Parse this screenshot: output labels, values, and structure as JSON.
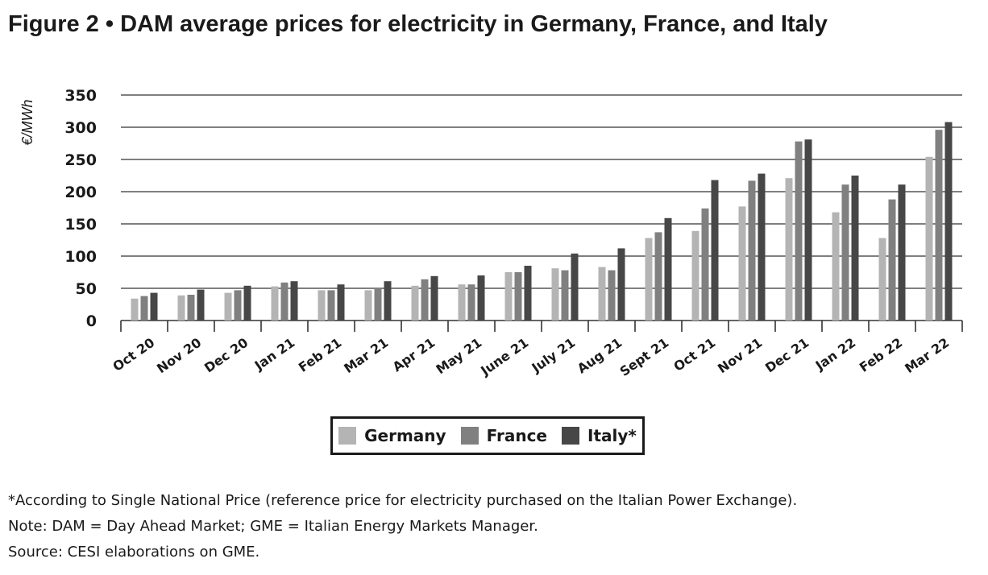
{
  "title": "Figure 2 • DAM average prices for electricity in Germany, France, and Italy",
  "chart_data": {
    "type": "bar",
    "ylabel": "€/MWh",
    "xlabel": "",
    "ylim": [
      0,
      350
    ],
    "yticks": [
      0,
      50,
      100,
      150,
      200,
      250,
      300,
      350
    ],
    "grid": true,
    "legend_position": "bottom-center",
    "categories": [
      "Oct 20",
      "Nov 20",
      "Dec 20",
      "Jan 21",
      "Feb 21",
      "Mar 21",
      "Apr 21",
      "May 21",
      "June 21",
      "July 21",
      "Aug 21",
      "Sept 21",
      "Oct 21",
      "Nov 21",
      "Dec 21",
      "Jan 22",
      "Feb 22",
      "Mar 22"
    ],
    "series": [
      {
        "name": "Germany",
        "color": "#b4b4b4",
        "values": [
          34,
          39,
          43,
          53,
          47,
          47,
          54,
          56,
          75,
          81,
          83,
          128,
          139,
          177,
          221,
          168,
          128,
          254
        ]
      },
      {
        "name": "France",
        "color": "#808080",
        "values": [
          38,
          40,
          47,
          59,
          47,
          51,
          64,
          56,
          75,
          78,
          78,
          137,
          174,
          217,
          278,
          211,
          188,
          296
        ]
      },
      {
        "name": "Italy*",
        "color": "#474747",
        "values": [
          43,
          48,
          54,
          61,
          56,
          61,
          69,
          70,
          85,
          104,
          112,
          159,
          218,
          228,
          281,
          225,
          211,
          308
        ]
      }
    ]
  },
  "notes": [
    "*According to Single National Price (reference price for electricity purchased on the Italian Power Exchange).",
    "Note: DAM = Day Ahead Market; GME = Italian Energy Markets Manager.",
    "Source: CESI elaborations on GME."
  ]
}
